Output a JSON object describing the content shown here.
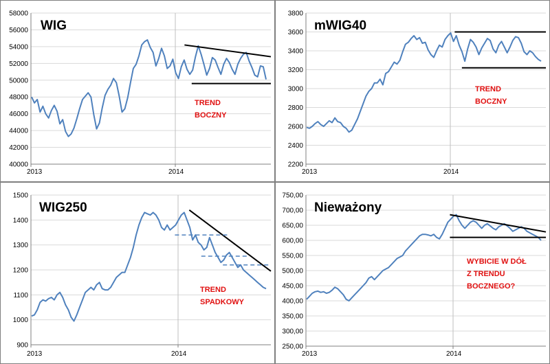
{
  "chart_data": [
    {
      "type": "line",
      "title": "WIG",
      "x_tick_labels": [
        "2013",
        "2014"
      ],
      "y_tick_labels": [
        "40000",
        "42000",
        "44000",
        "46000",
        "48000",
        "50000",
        "52000",
        "54000",
        "56000",
        "58000"
      ],
      "ylim": [
        40000,
        58000
      ],
      "grid": true,
      "annotation": [
        "TREND",
        "BOCZNY"
      ],
      "series": [
        {
          "color": "#4f81bd",
          "values": [
            48000,
            47300,
            47700,
            46200,
            46900,
            46000,
            45500,
            46400,
            47000,
            46300,
            44800,
            45300,
            43900,
            43300,
            43600,
            44300,
            45400,
            46600,
            47700,
            48100,
            48500,
            48000,
            45900,
            44200,
            44900,
            46700,
            48200,
            48900,
            49400,
            50200,
            49700,
            48100,
            46200,
            46600,
            47900,
            49700,
            51400,
            51900,
            52900,
            54200,
            54600,
            54800,
            53900,
            53300,
            51700,
            52600,
            53800,
            52900,
            51400,
            51700,
            52500,
            50900,
            50200,
            51600,
            52400,
            51300,
            50700,
            51200,
            52800,
            54100,
            53100,
            51900,
            50600,
            51400,
            52700,
            52400,
            51500,
            50700,
            51900,
            52600,
            52100,
            51300,
            50700,
            51900,
            52600,
            53100,
            53300,
            52300,
            51500,
            50600,
            50400,
            51700,
            51600,
            50100
          ]
        }
      ],
      "trend_lines": [
        {
          "from": [
            0.64,
            54200
          ],
          "to": [
            1.0,
            52800
          ]
        },
        {
          "from": [
            0.67,
            49600
          ],
          "to": [
            1.0,
            49600
          ]
        }
      ]
    },
    {
      "type": "line",
      "title": "mWIG40",
      "x_tick_labels": [
        "2013",
        "2014"
      ],
      "y_tick_labels": [
        "2200",
        "2400",
        "2600",
        "2800",
        "3000",
        "3200",
        "3400",
        "3600",
        "3800"
      ],
      "ylim": [
        2200,
        3800
      ],
      "grid": true,
      "annotation": [
        "TREND",
        "BOCZNY"
      ],
      "series": [
        {
          "color": "#4f81bd",
          "values": [
            2590,
            2580,
            2600,
            2630,
            2650,
            2620,
            2600,
            2630,
            2660,
            2640,
            2690,
            2650,
            2640,
            2600,
            2580,
            2540,
            2560,
            2620,
            2680,
            2760,
            2840,
            2920,
            2970,
            3000,
            3060,
            3060,
            3100,
            3040,
            3160,
            3180,
            3230,
            3280,
            3260,
            3300,
            3390,
            3470,
            3490,
            3530,
            3560,
            3520,
            3540,
            3480,
            3490,
            3410,
            3360,
            3330,
            3400,
            3460,
            3440,
            3520,
            3560,
            3590,
            3500,
            3560,
            3460,
            3390,
            3290,
            3420,
            3520,
            3490,
            3440,
            3360,
            3430,
            3480,
            3530,
            3510,
            3420,
            3380,
            3460,
            3500,
            3440,
            3380,
            3440,
            3510,
            3550,
            3540,
            3480,
            3390,
            3360,
            3400,
            3380,
            3340,
            3310,
            3290
          ]
        }
      ],
      "trend_lines": [
        {
          "from": [
            0.62,
            3600
          ],
          "to": [
            1.0,
            3600
          ]
        },
        {
          "from": [
            0.65,
            3220
          ],
          "to": [
            1.0,
            3220
          ]
        }
      ]
    },
    {
      "type": "line",
      "title": "WIG250",
      "x_tick_labels": [
        "2013",
        "2014"
      ],
      "y_tick_labels": [
        "900",
        "1000",
        "1100",
        "1200",
        "1300",
        "1400",
        "1500"
      ],
      "ylim": [
        900,
        1500
      ],
      "grid": true,
      "annotation": [
        "TREND",
        "SPADKOWY"
      ],
      "series": [
        {
          "color": "#4f81bd",
          "values": [
            1015,
            1020,
            1040,
            1070,
            1080,
            1075,
            1085,
            1090,
            1080,
            1100,
            1110,
            1090,
            1060,
            1040,
            1010,
            995,
            1020,
            1050,
            1080,
            1110,
            1120,
            1130,
            1120,
            1140,
            1150,
            1125,
            1120,
            1120,
            1130,
            1150,
            1170,
            1180,
            1190,
            1190,
            1220,
            1250,
            1290,
            1340,
            1380,
            1410,
            1430,
            1425,
            1420,
            1430,
            1420,
            1400,
            1370,
            1360,
            1380,
            1360,
            1370,
            1380,
            1400,
            1420,
            1430,
            1400,
            1370,
            1320,
            1340,
            1310,
            1300,
            1280,
            1290,
            1330,
            1300,
            1270,
            1250,
            1230,
            1240,
            1260,
            1270,
            1250,
            1230,
            1210,
            1220,
            1200,
            1190,
            1180,
            1170,
            1160,
            1150,
            1140,
            1130,
            1125
          ]
        }
      ],
      "trend_lines": [
        {
          "from": [
            0.66,
            1440
          ],
          "to": [
            1.0,
            1195
          ],
          "style": "solid"
        },
        {
          "from": [
            0.6,
            1340
          ],
          "to": [
            0.82,
            1340
          ],
          "style": "dashed"
        },
        {
          "from": [
            0.71,
            1255
          ],
          "to": [
            0.9,
            1255
          ],
          "style": "dashed"
        },
        {
          "from": [
            0.8,
            1220
          ],
          "to": [
            1.0,
            1220
          ],
          "style": "dashed"
        }
      ]
    },
    {
      "type": "line",
      "title": "Nieważony",
      "x_tick_labels": [
        "2013",
        "2014"
      ],
      "y_tick_labels": [
        "250,00",
        "300,00",
        "350,00",
        "400,00",
        "450,00",
        "500,00",
        "550,00",
        "600,00",
        "650,00",
        "700,00",
        "750,00"
      ],
      "ylim": [
        250,
        750
      ],
      "grid": true,
      "annotation": [
        "WYBICIE W DÓŁ",
        "Z TRENDU",
        "BOCZNEGO?"
      ],
      "series": [
        {
          "color": "#4f81bd",
          "values": [
            405,
            415,
            425,
            430,
            432,
            428,
            430,
            425,
            428,
            435,
            445,
            440,
            430,
            420,
            405,
            400,
            410,
            420,
            430,
            440,
            450,
            460,
            475,
            480,
            470,
            480,
            490,
            500,
            505,
            510,
            520,
            530,
            540,
            545,
            550,
            565,
            575,
            585,
            595,
            605,
            615,
            620,
            620,
            618,
            615,
            620,
            610,
            605,
            620,
            640,
            660,
            670,
            680,
            685,
            665,
            650,
            640,
            650,
            660,
            665,
            660,
            650,
            640,
            650,
            655,
            648,
            640,
            635,
            645,
            650,
            655,
            648,
            640,
            630,
            635,
            640,
            645,
            640,
            630,
            625,
            620,
            615,
            610,
            600
          ]
        }
      ],
      "trend_lines": [
        {
          "from": [
            0.6,
            685
          ],
          "to": [
            1.0,
            628
          ]
        },
        {
          "from": [
            0.6,
            610
          ],
          "to": [
            1.0,
            610
          ]
        }
      ]
    }
  ]
}
